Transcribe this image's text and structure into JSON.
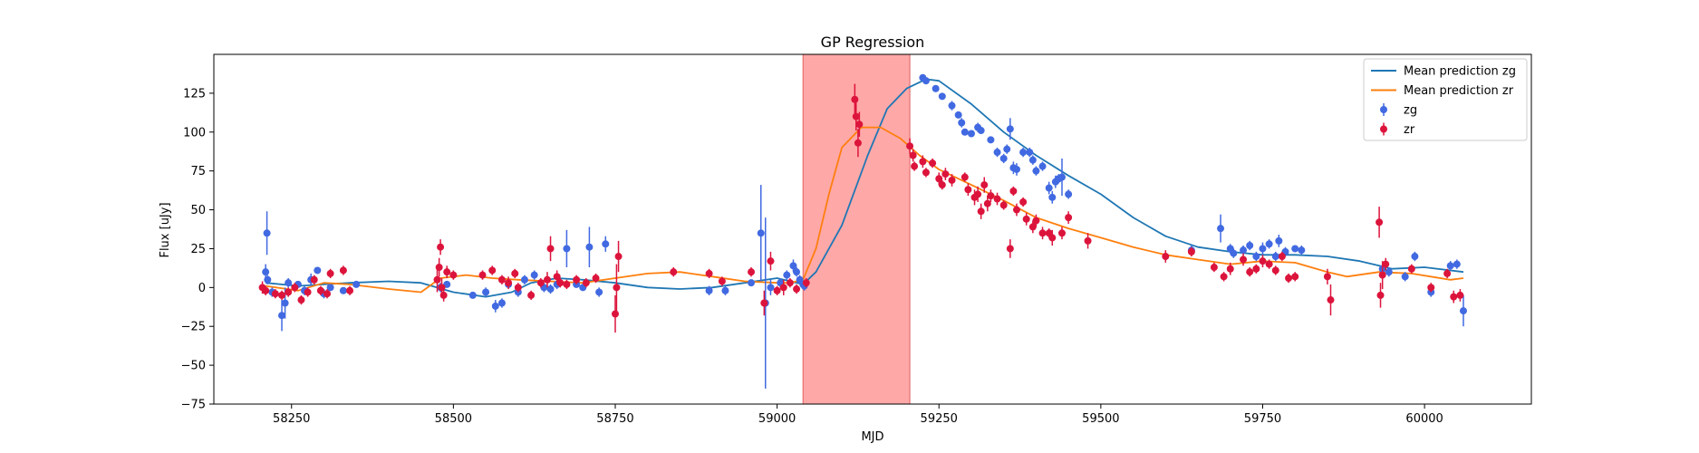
{
  "chart_data": {
    "type": "scatter",
    "title": "GP Regression",
    "xlabel": "MJD",
    "ylabel": "Flux [uJy]",
    "xlim": [
      58130,
      60165
    ],
    "ylim": [
      -75,
      150
    ],
    "xticks": [
      58250,
      58500,
      58750,
      59000,
      59250,
      59500,
      59750,
      60000
    ],
    "yticks": [
      -75,
      -50,
      -25,
      0,
      25,
      50,
      75,
      100,
      125
    ],
    "grid": false,
    "legend_position": "top-right",
    "shaded_region": {
      "x": [
        59040,
        59205
      ],
      "color": "#ff9999"
    },
    "series": [
      {
        "name": "Mean prediction zg",
        "kind": "line",
        "color": "#1f77b4",
        "x": [
          58210,
          58260,
          58300,
          58340,
          58400,
          58450,
          58500,
          58550,
          58590,
          58620,
          58660,
          58700,
          58750,
          58800,
          58850,
          58900,
          58950,
          59000,
          59040,
          59060,
          59100,
          59140,
          59170,
          59200,
          59230,
          59250,
          59300,
          59350,
          59400,
          59450,
          59500,
          59550,
          59600,
          59650,
          59700,
          59750,
          59800,
          59850,
          59900,
          59950,
          60000,
          60060
        ],
        "y": [
          3,
          1,
          2,
          3,
          4,
          3,
          -3,
          -6,
          -3,
          3,
          6,
          5,
          3,
          0,
          -1,
          0,
          3,
          6,
          2,
          10,
          40,
          85,
          115,
          128,
          134,
          133,
          118,
          100,
          85,
          72,
          60,
          45,
          33,
          26,
          23,
          21,
          21,
          20,
          17,
          12,
          13,
          10
        ]
      },
      {
        "name": "Mean prediction zr",
        "kind": "line",
        "color": "#ff7f0e",
        "x": [
          58210,
          58260,
          58300,
          58340,
          58400,
          58450,
          58480,
          58520,
          58560,
          58600,
          58650,
          58700,
          58750,
          58800,
          58850,
          58900,
          58950,
          59000,
          59020,
          59040,
          59060,
          59080,
          59100,
          59130,
          59160,
          59190,
          59220,
          59250,
          59300,
          59350,
          59400,
          59450,
          59500,
          59550,
          59600,
          59650,
          59700,
          59750,
          59800,
          59850,
          59880,
          59930,
          59980,
          60040,
          60060
        ],
        "y": [
          1,
          -2,
          3,
          2,
          -1,
          -3,
          6,
          8,
          6,
          5,
          4,
          3,
          6,
          9,
          10,
          7,
          4,
          3,
          3,
          5,
          25,
          60,
          90,
          103,
          103,
          96,
          85,
          76,
          66,
          56,
          45,
          38,
          32,
          26,
          21,
          18,
          15,
          17,
          16,
          10,
          7,
          10,
          9,
          5,
          6
        ]
      },
      {
        "name": "zg",
        "kind": "scatter",
        "color": "#4169e1",
        "points": [
          [
            58210,
            10,
            5
          ],
          [
            58212,
            35,
            14
          ],
          [
            58213,
            5,
            3
          ],
          [
            58220,
            -3,
            3
          ],
          [
            58235,
            -18,
            10
          ],
          [
            58240,
            -10,
            10
          ],
          [
            58245,
            3,
            3
          ],
          [
            58260,
            2,
            2
          ],
          [
            58270,
            -2,
            3
          ],
          [
            58280,
            5,
            4
          ],
          [
            58290,
            11,
            2
          ],
          [
            58300,
            -4,
            3
          ],
          [
            58310,
            0,
            2
          ],
          [
            58330,
            -2,
            2
          ],
          [
            58350,
            2,
            2
          ],
          [
            58480,
            0,
            3
          ],
          [
            58490,
            2,
            2
          ],
          [
            58530,
            -5,
            2
          ],
          [
            58550,
            -3,
            3
          ],
          [
            58565,
            -12,
            4
          ],
          [
            58575,
            -10,
            3
          ],
          [
            58585,
            2,
            2
          ],
          [
            58600,
            -3,
            3
          ],
          [
            58610,
            5,
            3
          ],
          [
            58625,
            8,
            3
          ],
          [
            58640,
            0,
            3
          ],
          [
            58650,
            -1,
            3
          ],
          [
            58660,
            2,
            3
          ],
          [
            58675,
            25,
            12
          ],
          [
            58690,
            2,
            2
          ],
          [
            58700,
            0,
            2
          ],
          [
            58710,
            26,
            13
          ],
          [
            58725,
            -3,
            3
          ],
          [
            58735,
            28,
            5
          ],
          [
            58895,
            -2,
            3
          ],
          [
            58920,
            -2,
            3
          ],
          [
            58960,
            3,
            2
          ],
          [
            58975,
            35,
            31
          ],
          [
            58982,
            -10,
            55
          ],
          [
            58990,
            0,
            5
          ],
          [
            59005,
            3,
            3
          ],
          [
            59015,
            8,
            3
          ],
          [
            59025,
            14,
            4
          ],
          [
            59030,
            10,
            3
          ],
          [
            59035,
            5,
            3
          ],
          [
            59040,
            2,
            2
          ],
          [
            59042,
            1,
            3
          ],
          [
            59225,
            135,
            2
          ],
          [
            59230,
            133,
            2
          ],
          [
            59245,
            128,
            2
          ],
          [
            59255,
            123,
            2
          ],
          [
            59270,
            117,
            3
          ],
          [
            59280,
            111,
            2
          ],
          [
            59285,
            106,
            3
          ],
          [
            59290,
            100,
            2
          ],
          [
            59300,
            99,
            2
          ],
          [
            59310,
            103,
            3
          ],
          [
            59315,
            101,
            2
          ],
          [
            59330,
            95,
            2
          ],
          [
            59340,
            87,
            3
          ],
          [
            59350,
            83,
            3
          ],
          [
            59355,
            89,
            3
          ],
          [
            59360,
            102,
            7
          ],
          [
            59365,
            77,
            4
          ],
          [
            59370,
            76,
            4
          ],
          [
            59380,
            87,
            3
          ],
          [
            59390,
            87,
            3
          ],
          [
            59395,
            82,
            3
          ],
          [
            59400,
            75,
            3
          ],
          [
            59410,
            78,
            3
          ],
          [
            59420,
            64,
            4
          ],
          [
            59425,
            58,
            4
          ],
          [
            59430,
            68,
            4
          ],
          [
            59435,
            70,
            3
          ],
          [
            59440,
            71,
            12
          ],
          [
            59450,
            60,
            3
          ],
          [
            59640,
            24,
            3
          ],
          [
            59685,
            38,
            9
          ],
          [
            59700,
            25,
            3
          ],
          [
            59705,
            22,
            3
          ],
          [
            59720,
            24,
            3
          ],
          [
            59730,
            27,
            3
          ],
          [
            59740,
            20,
            3
          ],
          [
            59750,
            25,
            4
          ],
          [
            59760,
            28,
            3
          ],
          [
            59770,
            20,
            3
          ],
          [
            59775,
            30,
            4
          ],
          [
            59785,
            23,
            3
          ],
          [
            59800,
            25,
            2
          ],
          [
            59810,
            24,
            3
          ],
          [
            59935,
            12,
            3
          ],
          [
            59945,
            10,
            3
          ],
          [
            59970,
            7,
            3
          ],
          [
            59985,
            20,
            3
          ],
          [
            60010,
            -3,
            3
          ],
          [
            60040,
            14,
            3
          ],
          [
            60050,
            15,
            3
          ],
          [
            60060,
            -15,
            10
          ]
        ]
      },
      {
        "name": "zr",
        "kind": "scatter",
        "color": "#dc143c",
        "points": [
          [
            58205,
            0,
            4
          ],
          [
            58210,
            -2,
            3
          ],
          [
            58225,
            -4,
            3
          ],
          [
            58235,
            -5,
            3
          ],
          [
            58245,
            -3,
            3
          ],
          [
            58255,
            0,
            3
          ],
          [
            58265,
            -8,
            3
          ],
          [
            58275,
            -3,
            3
          ],
          [
            58285,
            5,
            3
          ],
          [
            58295,
            -2,
            3
          ],
          [
            58305,
            -4,
            3
          ],
          [
            58310,
            9,
            3
          ],
          [
            58330,
            11,
            3
          ],
          [
            58340,
            -2,
            3
          ],
          [
            58475,
            5,
            8
          ],
          [
            58478,
            13,
            6
          ],
          [
            58480,
            26,
            5
          ],
          [
            58482,
            0,
            6
          ],
          [
            58485,
            -5,
            4
          ],
          [
            58490,
            10,
            4
          ],
          [
            58500,
            8,
            3
          ],
          [
            58545,
            8,
            3
          ],
          [
            58560,
            11,
            3
          ],
          [
            58575,
            5,
            3
          ],
          [
            58585,
            3,
            4
          ],
          [
            58595,
            9,
            3
          ],
          [
            58600,
            0,
            3
          ],
          [
            58620,
            -5,
            3
          ],
          [
            58635,
            3,
            3
          ],
          [
            58645,
            5,
            5
          ],
          [
            58650,
            25,
            8
          ],
          [
            58660,
            7,
            4
          ],
          [
            58665,
            3,
            3
          ],
          [
            58675,
            2,
            3
          ],
          [
            58690,
            5,
            3
          ],
          [
            58705,
            3,
            3
          ],
          [
            58720,
            6,
            3
          ],
          [
            58750,
            -17,
            12
          ],
          [
            58752,
            0,
            15
          ],
          [
            58755,
            20,
            10
          ],
          [
            58840,
            10,
            3
          ],
          [
            58895,
            9,
            3
          ],
          [
            58915,
            4,
            3
          ],
          [
            58960,
            10,
            3
          ],
          [
            58980,
            -10,
            8
          ],
          [
            58990,
            17,
            6
          ],
          [
            59000,
            -2,
            3
          ],
          [
            59010,
            0,
            5
          ],
          [
            59020,
            3,
            3
          ],
          [
            59030,
            -1,
            3
          ],
          [
            59045,
            3,
            3
          ],
          [
            59120,
            121,
            10
          ],
          [
            59122,
            110,
            9
          ],
          [
            59125,
            93,
            9
          ],
          [
            59127,
            105,
            8
          ],
          [
            59205,
            91,
            5
          ],
          [
            59210,
            85,
            4
          ],
          [
            59212,
            78,
            3
          ],
          [
            59225,
            81,
            4
          ],
          [
            59230,
            74,
            3
          ],
          [
            59240,
            80,
            3
          ],
          [
            59250,
            70,
            4
          ],
          [
            59255,
            66,
            3
          ],
          [
            59260,
            73,
            4
          ],
          [
            59270,
            69,
            4
          ],
          [
            59290,
            71,
            3
          ],
          [
            59295,
            63,
            4
          ],
          [
            59305,
            58,
            5
          ],
          [
            59310,
            60,
            5
          ],
          [
            59315,
            49,
            5
          ],
          [
            59320,
            66,
            5
          ],
          [
            59325,
            54,
            5
          ],
          [
            59330,
            59,
            4
          ],
          [
            59340,
            57,
            4
          ],
          [
            59350,
            53,
            3
          ],
          [
            59360,
            25,
            6
          ],
          [
            59365,
            62,
            3
          ],
          [
            59370,
            50,
            4
          ],
          [
            59380,
            55,
            3
          ],
          [
            59385,
            44,
            4
          ],
          [
            59395,
            39,
            4
          ],
          [
            59400,
            43,
            4
          ],
          [
            59410,
            35,
            4
          ],
          [
            59420,
            35,
            3
          ],
          [
            59425,
            32,
            5
          ],
          [
            59440,
            35,
            4
          ],
          [
            59450,
            45,
            4
          ],
          [
            59480,
            30,
            5
          ],
          [
            59600,
            20,
            4
          ],
          [
            59640,
            23,
            3
          ],
          [
            59675,
            13,
            3
          ],
          [
            59690,
            7,
            3
          ],
          [
            59700,
            12,
            4
          ],
          [
            59720,
            18,
            4
          ],
          [
            59730,
            10,
            3
          ],
          [
            59740,
            12,
            3
          ],
          [
            59750,
            17,
            4
          ],
          [
            59760,
            15,
            3
          ],
          [
            59770,
            11,
            3
          ],
          [
            59780,
            20,
            3
          ],
          [
            59790,
            6,
            3
          ],
          [
            59800,
            7,
            3
          ],
          [
            59850,
            7,
            5
          ],
          [
            59855,
            -8,
            10
          ],
          [
            59930,
            42,
            10
          ],
          [
            59932,
            -5,
            8
          ],
          [
            59935,
            8,
            9
          ],
          [
            59940,
            15,
            4
          ],
          [
            59980,
            12,
            3
          ],
          [
            60010,
            0,
            3
          ],
          [
            60035,
            9,
            3
          ],
          [
            60045,
            -6,
            4
          ],
          [
            60055,
            -5,
            4
          ]
        ]
      }
    ]
  }
}
